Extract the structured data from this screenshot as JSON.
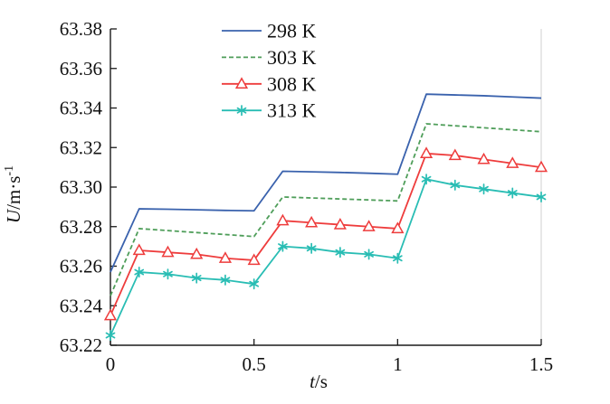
{
  "chart_data": {
    "type": "line",
    "title": "",
    "xlabel": {
      "variable": "t",
      "unit": "/s"
    },
    "ylabel": {
      "variable": "U",
      "unit": "/m·s",
      "exponent": "-1"
    },
    "xlim": [
      0,
      1.5
    ],
    "ylim": [
      63.22,
      63.38
    ],
    "x_ticks": [
      0,
      0.5,
      1,
      1.5
    ],
    "x_tick_labels": [
      "0",
      "0.5",
      "1",
      "1.5"
    ],
    "y_ticks": [
      63.22,
      63.24,
      63.26,
      63.28,
      63.3,
      63.32,
      63.34,
      63.36,
      63.38
    ],
    "y_tick_labels": [
      "63.22",
      "63.24",
      "63.26",
      "63.28",
      "63.30",
      "63.32",
      "63.34",
      "63.36",
      "63.38"
    ],
    "grid": false,
    "legend_position": "top-inside-left",
    "x": [
      0,
      0.1,
      0.2,
      0.3,
      0.4,
      0.5,
      0.6,
      0.7,
      0.8,
      0.9,
      1.0,
      1.1,
      1.2,
      1.3,
      1.4,
      1.5
    ],
    "series": [
      {
        "name": "298 K",
        "color": "#3a62ad",
        "line_style": "solid",
        "marker": "none",
        "values": [
          63.257,
          63.289,
          63.2888,
          63.2885,
          63.2882,
          63.288,
          63.308,
          63.3077,
          63.3074,
          63.307,
          63.3065,
          63.347,
          63.3466,
          63.3462,
          63.3456,
          63.345
        ]
      },
      {
        "name": "303 K",
        "color": "#4f9e5a",
        "line_style": "dashed",
        "marker": "none",
        "values": [
          63.245,
          63.279,
          63.278,
          63.277,
          63.276,
          63.275,
          63.295,
          63.2945,
          63.294,
          63.2935,
          63.293,
          63.332,
          63.331,
          63.33,
          63.329,
          63.328
        ]
      },
      {
        "name": "308 K",
        "color": "#ee3c3c",
        "line_style": "solid",
        "marker": "triangle-open",
        "values": [
          63.235,
          63.268,
          63.267,
          63.266,
          63.264,
          63.263,
          63.283,
          63.282,
          63.281,
          63.28,
          63.279,
          63.317,
          63.316,
          63.314,
          63.312,
          63.31
        ]
      },
      {
        "name": "313 K",
        "color": "#29bdb4",
        "line_style": "solid",
        "marker": "star",
        "values": [
          63.225,
          63.257,
          63.256,
          63.254,
          63.253,
          63.251,
          63.27,
          63.269,
          63.267,
          63.266,
          63.264,
          63.304,
          63.301,
          63.299,
          63.297,
          63.295
        ]
      }
    ],
    "axis_color": "#1a1a1a",
    "right_border_color": "#d9d9d9"
  }
}
